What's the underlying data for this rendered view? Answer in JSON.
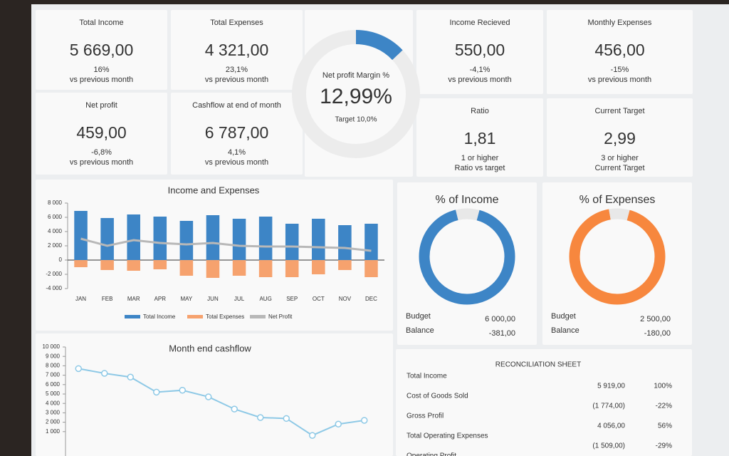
{
  "kpis": [
    {
      "title": "Total Income",
      "value": "5 669,00",
      "lines": [
        "16%",
        "vs previous month"
      ],
      "accent": "#3d7cc9"
    },
    {
      "title": "Total Expenses",
      "value": "4 321,00",
      "lines": [
        "23,1%",
        "vs previous month"
      ],
      "accent": "#3d7cc9"
    },
    {
      "title": "Net profit",
      "value": "459,00",
      "lines": [
        "-6,8%",
        "vs previous month"
      ],
      "accent": "#e0653a"
    },
    {
      "title": "Cashflow at end of month",
      "value": "6 787,00",
      "lines": [
        "4,1%",
        "vs previous month"
      ],
      "accent": "#3d7cc9"
    },
    {
      "title": "Income Recieved",
      "value": "550,00",
      "lines": [
        "-4,1%",
        "vs previous month"
      ],
      "accent": "#3d7cc9"
    },
    {
      "title": "Monthly Expenses",
      "value": "456,00",
      "lines": [
        "-15%",
        "vs previous month"
      ],
      "accent": "#3d7cc9"
    },
    {
      "title": "Ratio",
      "value": "1,81",
      "lines": [
        "1 or higher",
        "Ratio vs target"
      ],
      "accent": "#888888"
    },
    {
      "title": "Current Target",
      "value": "2,99",
      "lines": [
        "3 or higher",
        "Current Target"
      ],
      "accent": "#888888"
    }
  ],
  "chart_data": [
    {
      "type": "gauge",
      "title": "Net profit Margin %",
      "values": [
        12.99
      ],
      "value_labels": [
        "12,99%"
      ],
      "subtitle": "Target 10,0%",
      "color": "#3d85c6"
    },
    {
      "type": "bar",
      "title": "Income and Expenses",
      "categories": [
        "JAN",
        "FEB",
        "MAR",
        "APR",
        "MAY",
        "JUN",
        "JUL",
        "AUG",
        "SEP",
        "OCT",
        "NOV",
        "DEC"
      ],
      "series": [
        {
          "name": "Total Income",
          "color": "#3d85c6",
          "values": [
            6900,
            5900,
            6400,
            6100,
            5500,
            6300,
            5800,
            6100,
            5100,
            5800,
            4900,
            5100
          ]
        },
        {
          "name": "Total Expenses",
          "color": "#f6a26e",
          "values": [
            -1000,
            -1400,
            -1500,
            -1300,
            -2200,
            -2500,
            -2200,
            -2400,
            -2400,
            -2000,
            -1400,
            -2400
          ]
        },
        {
          "name": "Net Profit",
          "color": "#b8b8b8",
          "kind": "line",
          "values": [
            3000,
            2000,
            2800,
            2400,
            2200,
            2400,
            2000,
            1900,
            1900,
            1800,
            1700,
            1300
          ]
        }
      ],
      "ylim": [
        -4000,
        8000
      ],
      "yticks": [
        {
          "value": -4000,
          "label": "-4 000"
        },
        {
          "value": -2000,
          "label": "-2 000"
        },
        0,
        {
          "value": 2000,
          "label": "2 000"
        },
        {
          "value": 4000,
          "label": "4 000"
        },
        {
          "value": 6000,
          "label": "6 000"
        },
        {
          "value": 8000,
          "label": "8 000"
        }
      ]
    },
    {
      "type": "donut",
      "title": "% of Income",
      "values": [
        92,
        8
      ],
      "colors": [
        "#3d85c6",
        "#e8e8e8"
      ],
      "title_color": "#3d85c6",
      "rows": [
        [
          "Budget",
          "6 000,00"
        ],
        [
          "Balance",
          "-381,00"
        ]
      ]
    },
    {
      "type": "donut",
      "title": "% of Expenses",
      "values": [
        93,
        7
      ],
      "colors": [
        "#f7873e",
        "#e8e8e8"
      ],
      "title_color": "#f7873e",
      "rows": [
        [
          "Budget",
          "2 500,00"
        ],
        [
          "Balance",
          "-180,00"
        ]
      ]
    },
    {
      "type": "line",
      "title": "Month end cashflow",
      "color": "#8ec9e6",
      "categories": [
        null,
        null,
        null,
        null,
        null,
        null,
        null,
        null,
        null,
        null,
        null,
        null
      ],
      "values": [
        7700,
        7200,
        6800,
        5200,
        5400,
        4700,
        3400,
        2500,
        2400,
        600,
        1800,
        2200
      ],
      "ylim": [
        0,
        10000
      ],
      "yticks": [
        {
          "value": 1000,
          "label": "1 000"
        },
        {
          "value": 2000,
          "label": "2 000"
        },
        {
          "value": 3000,
          "label": "3 000"
        },
        {
          "value": 4000,
          "label": "4 000"
        },
        {
          "value": 5000,
          "label": "5 000"
        },
        {
          "value": 6000,
          "label": "6 000"
        },
        {
          "value": 7000,
          "label": "7 000"
        },
        {
          "value": 8000,
          "label": "8 000"
        },
        {
          "value": 9000,
          "label": "9 000"
        },
        {
          "value": 10000,
          "label": "10 000"
        }
      ]
    }
  ],
  "reconciliation": {
    "title": "RECONCILIATION SHEET",
    "rows": [
      [
        "Total Income",
        "5 919,00",
        "100%"
      ],
      [
        "Cost of Goods Sold",
        "(1 774,00)",
        "-22%"
      ],
      [
        "Gross Profil",
        "4 056,00",
        "56%"
      ],
      [
        "Total Operating Expenses",
        "(1 509,00)",
        "-29%"
      ],
      [
        "Operating Profit"
      ]
    ]
  }
}
